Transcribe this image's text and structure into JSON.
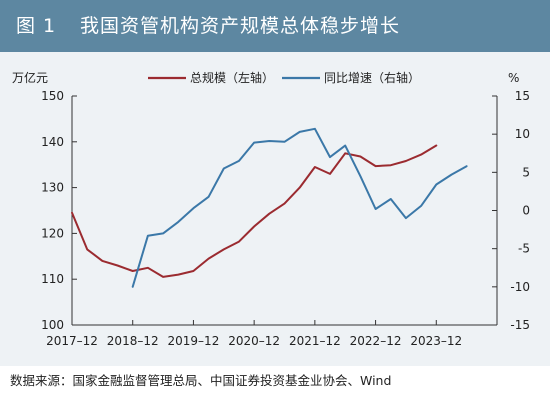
{
  "figure": {
    "label": "图 1",
    "title": "我国资管机构资产规模总体稳步增长",
    "source": "数据来源：国家金融监督管理总局、中国证券投资基金业协会、Wind"
  },
  "colors": {
    "title_bar": "#5d87a1",
    "panel_bg": "#eef2f5",
    "series_left": "#9b2b30",
    "series_right": "#3b78a8",
    "axis": "#333333"
  },
  "chart_data": {
    "type": "line",
    "left_axis": {
      "unit": "万亿元",
      "ylim": [
        100,
        150
      ],
      "ticks": [
        "100",
        "110",
        "120",
        "130",
        "140",
        "150"
      ]
    },
    "right_axis": {
      "unit": "%",
      "ylim": [
        -15,
        15
      ],
      "ticks": [
        "-15",
        "-10",
        "-5",
        "0",
        "5",
        "10",
        "15"
      ]
    },
    "x_axis": {
      "ticks": [
        "2017–12",
        "2018–12",
        "2019–12",
        "2020–12",
        "2021–12",
        "2022–12",
        "2023–12"
      ],
      "range": [
        2017.75,
        2024.75
      ]
    },
    "grid": false,
    "legend_position": "top",
    "series": [
      {
        "name": "总规模（左轴）",
        "axis": "left",
        "color": "#9b2b30",
        "points": [
          [
            2017.75,
            124.5
          ],
          [
            2018.0,
            116.5
          ],
          [
            2018.25,
            114.0
          ],
          [
            2018.5,
            113.0
          ],
          [
            2018.75,
            111.8
          ],
          [
            2019.0,
            112.5
          ],
          [
            2019.25,
            110.5
          ],
          [
            2019.5,
            111.0
          ],
          [
            2019.75,
            111.8
          ],
          [
            2020.0,
            114.5
          ],
          [
            2020.25,
            116.5
          ],
          [
            2020.5,
            118.2
          ],
          [
            2020.75,
            121.5
          ],
          [
            2021.0,
            124.3
          ],
          [
            2021.25,
            126.5
          ],
          [
            2021.5,
            130.0
          ],
          [
            2021.75,
            134.5
          ],
          [
            2022.0,
            133.0
          ],
          [
            2022.25,
            137.5
          ],
          [
            2022.5,
            136.8
          ],
          [
            2022.75,
            134.7
          ],
          [
            2023.0,
            134.9
          ],
          [
            2023.25,
            135.8
          ],
          [
            2023.5,
            137.2
          ],
          [
            2023.75,
            139.2
          ]
        ]
      },
      {
        "name": "同比增速（右轴）",
        "axis": "right",
        "color": "#3b78a8",
        "points": [
          [
            2018.75,
            -10.0
          ],
          [
            2019.0,
            -3.3
          ],
          [
            2019.25,
            -3.0
          ],
          [
            2019.5,
            -1.5
          ],
          [
            2019.75,
            0.3
          ],
          [
            2020.0,
            1.8
          ],
          [
            2020.25,
            5.5
          ],
          [
            2020.5,
            6.5
          ],
          [
            2020.75,
            8.9
          ],
          [
            2021.0,
            9.1
          ],
          [
            2021.25,
            9.0
          ],
          [
            2021.5,
            10.3
          ],
          [
            2021.75,
            10.7
          ],
          [
            2022.0,
            7.0
          ],
          [
            2022.25,
            8.5
          ],
          [
            2022.5,
            4.5
          ],
          [
            2022.75,
            0.2
          ],
          [
            2023.0,
            1.5
          ],
          [
            2023.25,
            -1.0
          ],
          [
            2023.5,
            0.6
          ],
          [
            2023.75,
            3.4
          ],
          [
            2024.0,
            4.7
          ],
          [
            2024.25,
            5.8
          ]
        ]
      }
    ]
  }
}
